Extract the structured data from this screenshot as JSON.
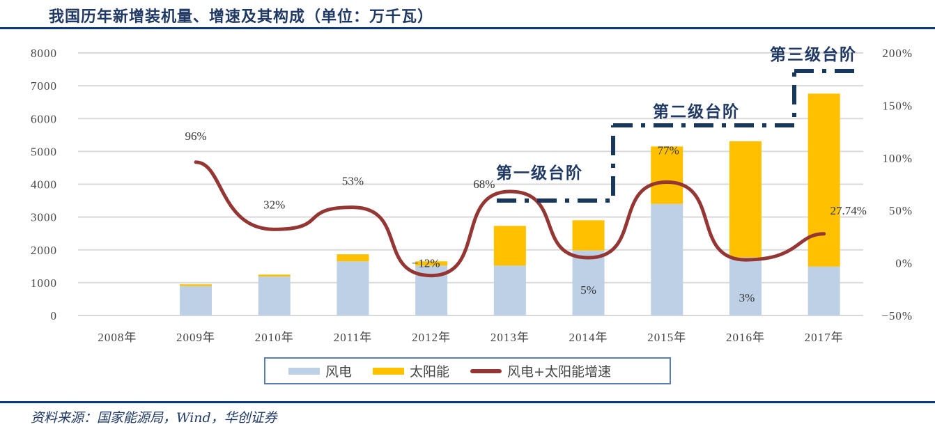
{
  "title": "我国历年新增装机量、增速及其构成（单位：万千瓦）",
  "source": "资料来源：国家能源局，Wind，华创证券",
  "colors": {
    "wind": "#bdd0e5",
    "solar": "#ffc000",
    "growth": "#943634",
    "step": "#17375e",
    "grid": "#d9d9d9"
  },
  "legend": [
    {
      "key": "wind",
      "label": "风电"
    },
    {
      "key": "solar",
      "label": "太阳能"
    },
    {
      "key": "growth",
      "label": "风电+太阳能增速"
    }
  ],
  "annotations": [
    "第一级台阶",
    "第二级台阶",
    "第三级台阶"
  ],
  "chart_data": {
    "type": "bar",
    "title": "我国历年新增装机量、增速及其构成（单位：万千瓦）",
    "categories": [
      "2008年",
      "2009年",
      "2010年",
      "2011年",
      "2012年",
      "2013年",
      "2014年",
      "2015年",
      "2016年",
      "2017年"
    ],
    "series": [
      {
        "name": "风电",
        "type": "bar",
        "stacked": true,
        "axis": "left",
        "values": [
          0,
          900,
          1190,
          1650,
          1520,
          1520,
          1980,
          3400,
          1770,
          1490
        ]
      },
      {
        "name": "太阳能",
        "type": "bar",
        "stacked": true,
        "axis": "left",
        "values": [
          0,
          50,
          55,
          215,
          130,
          1210,
          920,
          1750,
          3540,
          5270
        ]
      },
      {
        "name": "风电+太阳能增速",
        "type": "line",
        "axis": "right",
        "smooth": true,
        "values": [
          null,
          96,
          32,
          53,
          -12,
          68,
          5,
          77,
          3,
          27.74
        ],
        "labels": [
          "",
          "96%",
          "32%",
          "53%",
          "−12%",
          "68%",
          "5%",
          "77%",
          "3%",
          "27.74%"
        ]
      }
    ],
    "y_left": {
      "min": 0,
      "max": 8000,
      "ticks": [
        "0",
        "1000",
        "2000",
        "3000",
        "4000",
        "5000",
        "6000",
        "7000",
        "8000"
      ]
    },
    "y_right": {
      "min": -50,
      "max": 200,
      "ticks": [
        "-50%",
        "0%",
        "50%",
        "100%",
        "150%",
        "200%"
      ]
    },
    "grid": true,
    "legend_position": "bottom"
  }
}
